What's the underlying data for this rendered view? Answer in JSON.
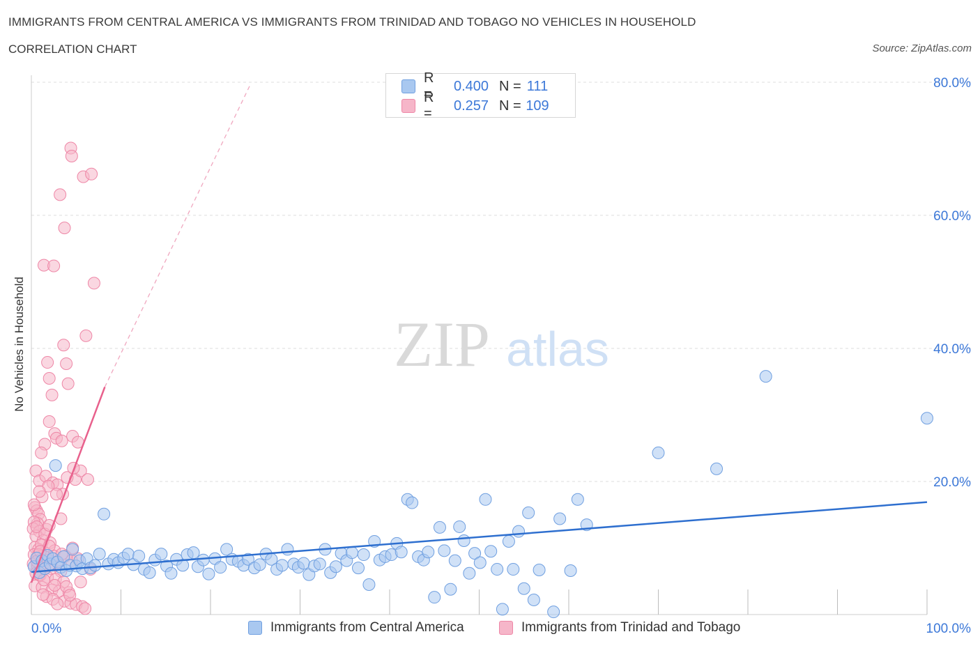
{
  "header": {
    "title": "IMMIGRANTS FROM CENTRAL AMERICA VS IMMIGRANTS FROM TRINIDAD AND TOBAGO NO VEHICLES IN HOUSEHOLD",
    "subtitle": "CORRELATION CHART",
    "source": "Source: ZipAtlas.com"
  },
  "legend": {
    "rows": [
      {
        "r_label": "R =",
        "r_value": "0.400",
        "n_label": "N =",
        "n_value": "111"
      },
      {
        "r_label": "R =",
        "r_value": "0.257",
        "n_label": "N =",
        "n_value": "109"
      }
    ]
  },
  "colors": {
    "blue_fill": "#a9c8f0",
    "blue_stroke": "#6f9fe0",
    "blue_line": "#2e6fcf",
    "pink_fill": "#f6b6c9",
    "pink_stroke": "#ee86a6",
    "pink_line": "#e8608c",
    "tick_label": "#3c78d8",
    "grid": "#dddddd"
  },
  "watermark": {
    "zip": "ZIP",
    "atlas": "atlas"
  },
  "chart_data": {
    "type": "scatter",
    "title": "IMMIGRANTS FROM CENTRAL AMERICA VS IMMIGRANTS FROM TRINIDAD AND TOBAGO NO VEHICLES IN HOUSEHOLD",
    "xlabel": "",
    "ylabel": "No Vehicles in Household",
    "xlim": [
      0,
      100
    ],
    "ylim": [
      0,
      80
    ],
    "x_tick_labels": [
      "0.0%",
      "100.0%"
    ],
    "y_ticks": [
      20,
      40,
      60,
      80
    ],
    "y_tick_labels": [
      "20.0%",
      "40.0%",
      "60.0%",
      "80.0%"
    ],
    "grid": true,
    "legend_position": "top-center",
    "series": [
      {
        "name": "Immigrants from Central America",
        "color": "#a9c8f0",
        "trend": {
          "x": [
            0,
            100
          ],
          "y": [
            6.4,
            16.9
          ]
        },
        "points": [
          [
            0.3,
            7.2
          ],
          [
            0.6,
            8.5
          ],
          [
            0.9,
            6.3
          ],
          [
            1.2,
            8.1
          ],
          [
            1.5,
            6.9
          ],
          [
            1.8,
            8.9
          ],
          [
            2.1,
            7.6
          ],
          [
            2.4,
            8.4
          ],
          [
            2.7,
            22.4
          ],
          [
            2.9,
            7.9
          ],
          [
            3.3,
            7.1
          ],
          [
            3.6,
            8.7
          ],
          [
            3.9,
            6.6
          ],
          [
            4.3,
            7.4
          ],
          [
            4.6,
            9.8
          ],
          [
            5.0,
            7.3
          ],
          [
            5.4,
            8.1
          ],
          [
            5.7,
            6.9
          ],
          [
            6.2,
            8.4
          ],
          [
            6.6,
            7.0
          ],
          [
            7.1,
            7.4
          ],
          [
            7.6,
            9.1
          ],
          [
            8.1,
            15.1
          ],
          [
            8.6,
            7.6
          ],
          [
            9.2,
            8.3
          ],
          [
            9.7,
            7.8
          ],
          [
            10.3,
            8.5
          ],
          [
            10.8,
            9.1
          ],
          [
            11.4,
            7.5
          ],
          [
            12.0,
            8.8
          ],
          [
            12.6,
            6.8
          ],
          [
            13.2,
            6.3
          ],
          [
            13.8,
            8.2
          ],
          [
            14.5,
            9.1
          ],
          [
            15.1,
            7.3
          ],
          [
            15.6,
            6.2
          ],
          [
            16.2,
            8.3
          ],
          [
            16.9,
            7.4
          ],
          [
            17.4,
            9.0
          ],
          [
            18.1,
            9.3
          ],
          [
            18.6,
            7.2
          ],
          [
            19.2,
            8.2
          ],
          [
            19.8,
            6.1
          ],
          [
            20.5,
            8.4
          ],
          [
            21.1,
            7.1
          ],
          [
            21.8,
            9.8
          ],
          [
            22.4,
            8.3
          ],
          [
            23.1,
            8.0
          ],
          [
            23.7,
            7.4
          ],
          [
            24.2,
            8.3
          ],
          [
            24.9,
            7.0
          ],
          [
            25.5,
            7.5
          ],
          [
            26.2,
            9.1
          ],
          [
            26.8,
            8.3
          ],
          [
            27.4,
            6.8
          ],
          [
            28.0,
            7.4
          ],
          [
            28.6,
            9.8
          ],
          [
            29.3,
            7.6
          ],
          [
            29.8,
            7.1
          ],
          [
            30.4,
            7.7
          ],
          [
            31.0,
            6.0
          ],
          [
            31.6,
            7.3
          ],
          [
            32.2,
            7.6
          ],
          [
            32.8,
            9.8
          ],
          [
            33.4,
            6.3
          ],
          [
            34.0,
            7.2
          ],
          [
            34.6,
            9.2
          ],
          [
            35.2,
            8.1
          ],
          [
            35.8,
            9.3
          ],
          [
            36.5,
            7.0
          ],
          [
            37.1,
            9.0
          ],
          [
            37.7,
            4.5
          ],
          [
            38.3,
            11.0
          ],
          [
            38.9,
            8.2
          ],
          [
            39.5,
            8.7
          ],
          [
            40.2,
            9.0
          ],
          [
            40.8,
            10.7
          ],
          [
            41.3,
            9.4
          ],
          [
            42.0,
            17.3
          ],
          [
            42.5,
            16.8
          ],
          [
            43.2,
            8.7
          ],
          [
            43.8,
            8.2
          ],
          [
            44.3,
            9.4
          ],
          [
            45.0,
            2.6
          ],
          [
            45.6,
            13.1
          ],
          [
            46.1,
            9.6
          ],
          [
            46.8,
            3.8
          ],
          [
            47.3,
            8.1
          ],
          [
            47.8,
            13.2
          ],
          [
            48.3,
            11.1
          ],
          [
            48.9,
            6.2
          ],
          [
            49.5,
            9.2
          ],
          [
            50.1,
            7.8
          ],
          [
            50.7,
            17.3
          ],
          [
            51.3,
            9.5
          ],
          [
            52.0,
            6.8
          ],
          [
            52.6,
            0.8
          ],
          [
            53.3,
            11.0
          ],
          [
            53.8,
            6.8
          ],
          [
            54.4,
            12.5
          ],
          [
            55.0,
            3.9
          ],
          [
            55.5,
            15.3
          ],
          [
            56.1,
            2.2
          ],
          [
            56.7,
            6.7
          ],
          [
            58.3,
            0.4
          ],
          [
            59.0,
            14.4
          ],
          [
            60.2,
            6.6
          ],
          [
            61.0,
            17.3
          ],
          [
            62.0,
            13.5
          ],
          [
            70.0,
            24.3
          ],
          [
            76.5,
            21.9
          ],
          [
            82.0,
            35.8
          ],
          [
            100.0,
            29.5
          ]
        ]
      },
      {
        "name": "Immigrants from Trinidad and Tobago",
        "color": "#f6b6c9",
        "trend": {
          "x": [
            0,
            8.2
          ],
          "y": [
            4.8,
            34.2
          ]
        },
        "trend_extended": {
          "x": [
            8.2,
            24.5
          ],
          "y": [
            34.2,
            79.8
          ]
        },
        "points": [
          [
            1.4,
            52.5
          ],
          [
            1.8,
            37.9
          ],
          [
            2.0,
            35.5
          ],
          [
            2.3,
            33.0
          ],
          [
            2.0,
            29.0
          ],
          [
            2.6,
            27.2
          ],
          [
            2.8,
            26.5
          ],
          [
            3.4,
            26.1
          ],
          [
            3.6,
            40.5
          ],
          [
            3.9,
            37.7
          ],
          [
            4.1,
            34.7
          ],
          [
            4.4,
            70.1
          ],
          [
            4.5,
            68.9
          ],
          [
            4.6,
            26.8
          ],
          [
            4.9,
            20.3
          ],
          [
            5.2,
            25.9
          ],
          [
            5.5,
            21.6
          ],
          [
            6.1,
            41.9
          ],
          [
            5.8,
            65.8
          ],
          [
            6.7,
            66.2
          ],
          [
            3.2,
            63.1
          ],
          [
            3.7,
            58.1
          ],
          [
            2.5,
            52.4
          ],
          [
            7.0,
            49.8
          ],
          [
            1.5,
            25.6
          ],
          [
            1.1,
            24.3
          ],
          [
            0.5,
            21.6
          ],
          [
            0.9,
            20.1
          ],
          [
            1.6,
            20.8
          ],
          [
            2.4,
            19.8
          ],
          [
            2.9,
            19.5
          ],
          [
            3.5,
            18.1
          ],
          [
            4.0,
            20.6
          ],
          [
            1.2,
            17.7
          ],
          [
            0.4,
            16.1
          ],
          [
            0.6,
            15.6
          ],
          [
            0.8,
            15.1
          ],
          [
            1.0,
            14.3
          ],
          [
            0.7,
            13.7
          ],
          [
            0.3,
            13.9
          ],
          [
            0.2,
            12.9
          ],
          [
            0.9,
            12.5
          ],
          [
            1.7,
            12.8
          ],
          [
            0.5,
            11.8
          ],
          [
            1.3,
            11.1
          ],
          [
            2.1,
            10.8
          ],
          [
            0.4,
            10.1
          ],
          [
            0.8,
            9.8
          ],
          [
            1.5,
            9.3
          ],
          [
            2.6,
            9.6
          ],
          [
            0.3,
            9.0
          ],
          [
            0.6,
            8.5
          ],
          [
            1.1,
            8.3
          ],
          [
            1.9,
            8.2
          ],
          [
            3.0,
            7.9
          ],
          [
            0.2,
            7.6
          ],
          [
            0.7,
            7.3
          ],
          [
            1.4,
            7.1
          ],
          [
            2.2,
            6.9
          ],
          [
            3.3,
            6.5
          ],
          [
            0.5,
            6.2
          ],
          [
            1.0,
            5.9
          ],
          [
            1.8,
            5.6
          ],
          [
            2.7,
            5.3
          ],
          [
            3.6,
            4.9
          ],
          [
            0.4,
            4.3
          ],
          [
            1.2,
            4.1
          ],
          [
            2.3,
            3.7
          ],
          [
            3.1,
            3.5
          ],
          [
            4.2,
            3.3
          ],
          [
            1.7,
            2.7
          ],
          [
            2.4,
            2.3
          ],
          [
            3.7,
            2.0
          ],
          [
            4.4,
            1.7
          ],
          [
            5.0,
            1.5
          ],
          [
            5.7,
            1.2
          ],
          [
            6.0,
            0.9
          ],
          [
            2.9,
            1.6
          ],
          [
            5.5,
            4.9
          ],
          [
            6.6,
            6.8
          ],
          [
            6.3,
            20.3
          ],
          [
            4.7,
            22.0
          ],
          [
            1.9,
            19.3
          ],
          [
            0.9,
            18.5
          ],
          [
            2.8,
            18.1
          ],
          [
            3.3,
            14.4
          ],
          [
            0.6,
            13.2
          ],
          [
            1.5,
            12.1
          ],
          [
            2.0,
            13.4
          ],
          [
            0.3,
            16.5
          ],
          [
            1.1,
            10.5
          ],
          [
            0.8,
            9.0
          ],
          [
            1.6,
            8.6
          ],
          [
            2.2,
            7.6
          ],
          [
            3.8,
            8.8
          ],
          [
            4.5,
            8.1
          ],
          [
            5.2,
            8.4
          ],
          [
            0.9,
            6.0
          ],
          [
            1.4,
            5.2
          ],
          [
            2.6,
            4.4
          ],
          [
            3.9,
            4.2
          ],
          [
            4.3,
            2.9
          ],
          [
            1.3,
            3.0
          ],
          [
            0.6,
            8.0
          ],
          [
            2.5,
            8.8
          ],
          [
            3.4,
            9.1
          ],
          [
            1.0,
            9.5
          ],
          [
            2.0,
            10.3
          ],
          [
            4.6,
            10.0
          ]
        ]
      }
    ]
  },
  "bottom_legend": {
    "items": [
      "Immigrants from Central America",
      "Immigrants from Trinidad and Tobago"
    ]
  }
}
